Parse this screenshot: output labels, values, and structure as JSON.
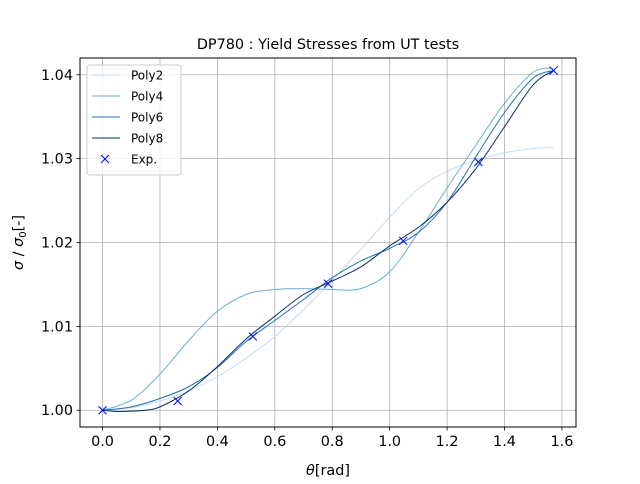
{
  "chart_data": {
    "type": "line",
    "title": "DP780 : Yield Stresses from UT tests",
    "xlabel_main": "θ",
    "xlabel_unit": "[rad]",
    "ylabel_sigma": "σ",
    "ylabel_slash": " / ",
    "ylabel_sigma0": "σ",
    "ylabel_sub": "0",
    "ylabel_unit": "[-]",
    "xlim": [
      -0.0785,
      1.649
    ],
    "ylim": [
      0.998,
      1.042
    ],
    "x_ticks": [
      0.0,
      0.2,
      0.4,
      0.6,
      0.8,
      1.0,
      1.2,
      1.4,
      1.6
    ],
    "x_tick_labels": [
      "0.0",
      "0.2",
      "0.4",
      "0.6",
      "0.8",
      "1.0",
      "1.2",
      "1.4",
      "1.6"
    ],
    "y_ticks": [
      1.0,
      1.01,
      1.02,
      1.03,
      1.04
    ],
    "y_tick_labels": [
      "1.00",
      "1.01",
      "1.02",
      "1.03",
      "1.04"
    ],
    "grid": true,
    "legend_position": "upper-left",
    "series": [
      {
        "name": "Poly2",
        "color": "#c6dbef",
        "x": [
          0.0,
          0.1,
          0.2,
          0.3,
          0.4,
          0.5,
          0.6,
          0.7,
          0.8,
          0.9,
          1.0,
          1.1,
          1.2,
          1.3,
          1.4,
          1.5,
          1.5708
        ],
        "values": [
          1.0,
          1.0003,
          1.0011,
          1.0023,
          1.004,
          1.0062,
          1.0088,
          1.012,
          1.0155,
          1.0192,
          1.023,
          1.0264,
          1.0285,
          1.0298,
          1.0307,
          1.0312,
          1.0313
        ]
      },
      {
        "name": "Poly4",
        "color": "#6baed6",
        "x": [
          0.0,
          0.1,
          0.2,
          0.3,
          0.4,
          0.5,
          0.6,
          0.7,
          0.8,
          0.9,
          1.0,
          1.1,
          1.2,
          1.3,
          1.4,
          1.5,
          1.5708
        ],
        "values": [
          1.0,
          1.0012,
          1.0043,
          1.0083,
          1.0118,
          1.0138,
          1.0144,
          1.0145,
          1.0144,
          1.0145,
          1.0165,
          1.0212,
          1.0265,
          1.0316,
          1.0366,
          1.0403,
          1.0408
        ]
      },
      {
        "name": "Poly6",
        "color": "#2171b5",
        "x": [
          0.0,
          0.1,
          0.2,
          0.3,
          0.4,
          0.5,
          0.6,
          0.7,
          0.8,
          0.9,
          1.0,
          1.1,
          1.2,
          1.3,
          1.4,
          1.5,
          1.5708
        ],
        "values": [
          1.0,
          1.0004,
          1.0014,
          1.0028,
          1.0051,
          1.0082,
          1.0107,
          1.0132,
          1.0158,
          1.0178,
          1.0193,
          1.0212,
          1.0248,
          1.0302,
          1.0355,
          1.0396,
          1.0405
        ]
      },
      {
        "name": "Poly8",
        "color": "#08306b",
        "x": [
          0.0,
          0.05,
          0.1,
          0.15,
          0.2,
          0.3,
          0.4,
          0.5,
          0.6,
          0.7,
          0.8,
          0.9,
          1.0,
          1.1,
          1.2,
          1.3,
          1.4,
          1.5,
          1.5708
        ],
        "values": [
          1.0,
          0.99985,
          0.9999,
          1.0,
          1.0004,
          1.0023,
          1.0052,
          1.0085,
          1.0112,
          1.0138,
          1.0154,
          1.0171,
          1.0196,
          1.0218,
          1.0248,
          1.0288,
          1.0338,
          1.0388,
          1.0405
        ]
      },
      {
        "name": "Exp.",
        "color": "#0000ff",
        "marker": "x",
        "x": [
          0.0,
          0.2618,
          0.5236,
          0.7854,
          1.0472,
          1.309,
          1.5708
        ],
        "values": [
          1.0,
          1.0011,
          1.0088,
          1.0151,
          1.0202,
          1.0296,
          1.0405
        ]
      }
    ]
  }
}
